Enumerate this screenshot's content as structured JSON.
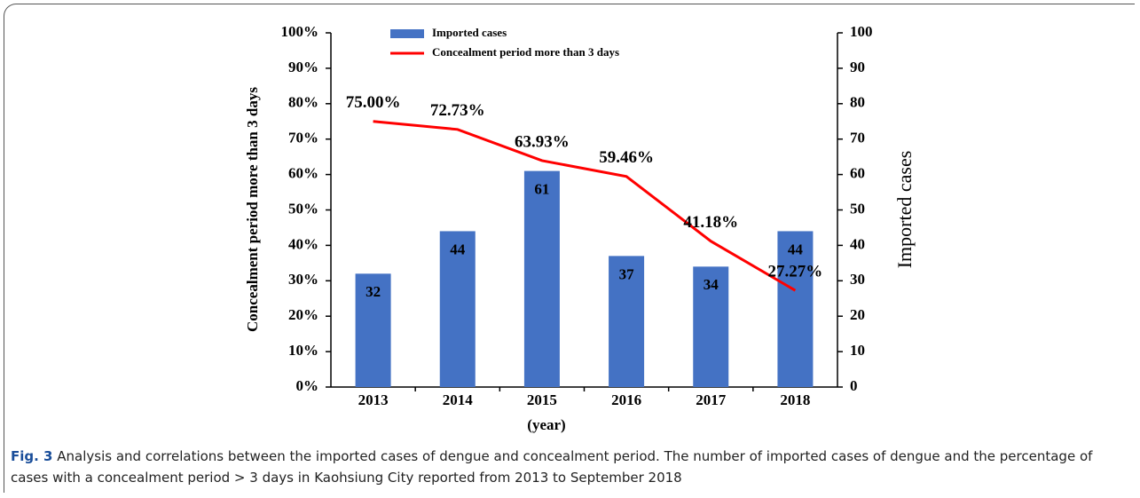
{
  "chart_data": {
    "type": "bar",
    "categories": [
      "2013",
      "2014",
      "2015",
      "2016",
      "2017",
      "2018"
    ],
    "x_label": "(year)",
    "y_label": "Concealment period more than 3 days",
    "y2_label": "Imported cases",
    "ylim": [
      0,
      100
    ],
    "yticks": [
      {
        "value": 0,
        "label": "0%"
      },
      {
        "value": 10,
        "label": "10%"
      },
      {
        "value": 20,
        "label": "20%"
      },
      {
        "value": 30,
        "label": "30%"
      },
      {
        "value": 40,
        "label": "40%"
      },
      {
        "value": 50,
        "label": "50%"
      },
      {
        "value": 60,
        "label": "60%"
      },
      {
        "value": 70,
        "label": "70%"
      },
      {
        "value": 80,
        "label": "80%"
      },
      {
        "value": 90,
        "label": "90%"
      },
      {
        "value": 100,
        "label": "100%"
      }
    ],
    "y2lim": [
      0,
      100
    ],
    "y2ticks": [
      0,
      10,
      20,
      30,
      40,
      50,
      60,
      70,
      80,
      90,
      100
    ],
    "legend": "top",
    "series": [
      {
        "name": "Imported cases",
        "type": "bar",
        "axis": "y2",
        "color": "#4472c4",
        "values": [
          32,
          44,
          61,
          37,
          34,
          44
        ]
      },
      {
        "name": "Concealment period more than 3 days",
        "type": "line",
        "color": "#ff0000",
        "values": [
          75,
          72.73,
          63.93,
          59.46,
          41.18,
          27.27
        ],
        "value_labels": [
          "75.00%",
          "72.73%",
          "63.93%",
          "59.46%",
          "41.18%",
          "27.27%"
        ]
      }
    ]
  },
  "caption": {
    "label": "Fig. 3",
    "text": "Analysis and correlations between the imported cases of dengue and concealment period. The number of imported cases of dengue and the percentage of cases with a concealment period > 3 days in Kaohsiung City reported from 2013 to September 2018"
  }
}
